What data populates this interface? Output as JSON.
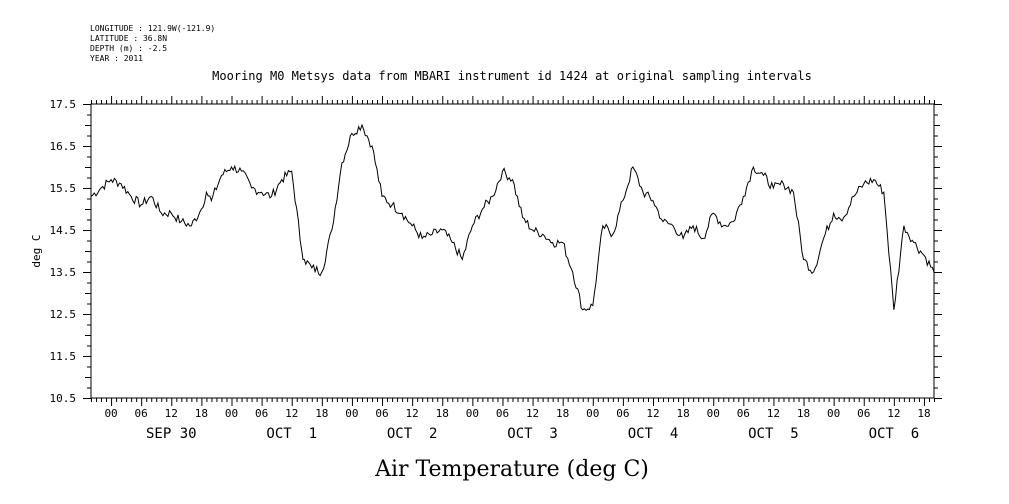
{
  "metadata": {
    "longitude": "LONGITUDE : 121.9W(-121.9)",
    "latitude": "LATITUDE : 36.8N",
    "depth": "DEPTH (m) : -2.5",
    "year": "YEAR : 2011"
  },
  "chart_data": {
    "type": "line",
    "title": "Mooring M0 Metsys data from MBARI instrument id 1424 at original sampling intervals",
    "xlabel": "Air Temperature (deg C)",
    "ylabel": "deg C",
    "ylim": [
      10.5,
      17.5
    ],
    "yticks": [
      "10.5",
      "11.5",
      "12.5",
      "13.5",
      "14.5",
      "15.5",
      "16.5",
      "17.5"
    ],
    "xlim_hours": [
      -4,
      164
    ],
    "hour_tick_labels": [
      "00",
      "06",
      "12",
      "18"
    ],
    "day_labels": [
      "SEP 30",
      "OCT  1",
      "OCT  2",
      "OCT  3",
      "OCT  4",
      "OCT  5",
      "OCT  6"
    ],
    "series": [
      {
        "x": [
          -4,
          -2,
          0,
          2,
          4,
          6,
          8,
          10,
          12,
          14,
          16,
          18,
          19,
          20,
          22,
          24,
          26,
          28,
          30,
          32,
          34,
          36,
          38,
          38.5,
          40,
          42,
          44,
          46,
          48,
          50,
          52,
          54,
          56,
          58,
          60,
          62,
          64,
          66,
          68,
          70,
          72,
          74,
          76,
          78,
          80,
          82,
          84,
          86,
          88,
          90,
          92,
          94,
          96,
          98,
          100,
          102,
          104,
          106,
          108,
          110,
          112,
          114,
          116,
          118,
          120,
          122,
          124,
          126,
          128,
          130,
          132,
          134,
          136,
          138,
          140,
          142,
          144,
          145,
          146,
          148,
          150,
          152,
          154,
          156,
          158,
          160,
          162,
          164
        ],
        "values": [
          15.3,
          15.5,
          15.7,
          15.6,
          15.3,
          15.1,
          15.3,
          14.9,
          14.9,
          14.7,
          14.6,
          15.0,
          15.4,
          15.2,
          15.8,
          16.0,
          15.9,
          15.5,
          15.4,
          15.3,
          15.7,
          15.9,
          14.0,
          13.8,
          13.6,
          13.5,
          14.5,
          16.1,
          16.8,
          17.0,
          16.5,
          15.3,
          15.1,
          14.9,
          14.6,
          14.3,
          14.4,
          14.5,
          14.2,
          13.8,
          14.6,
          15.0,
          15.3,
          15.9,
          15.7,
          14.8,
          14.5,
          14.4,
          14.2,
          14.2,
          13.5,
          12.6,
          12.7,
          14.6,
          14.4,
          15.2,
          16.0,
          15.4,
          15.2,
          14.7,
          14.6,
          14.3,
          14.6,
          14.3,
          14.9,
          14.6,
          14.7,
          15.3,
          16.0,
          15.8,
          15.5,
          15.6,
          15.4,
          13.8,
          13.5,
          14.3,
          14.9,
          14.8,
          14.8,
          15.3,
          15.6,
          15.7,
          15.4,
          12.6,
          14.6,
          14.2,
          13.9,
          13.5
        ]
      }
    ]
  }
}
